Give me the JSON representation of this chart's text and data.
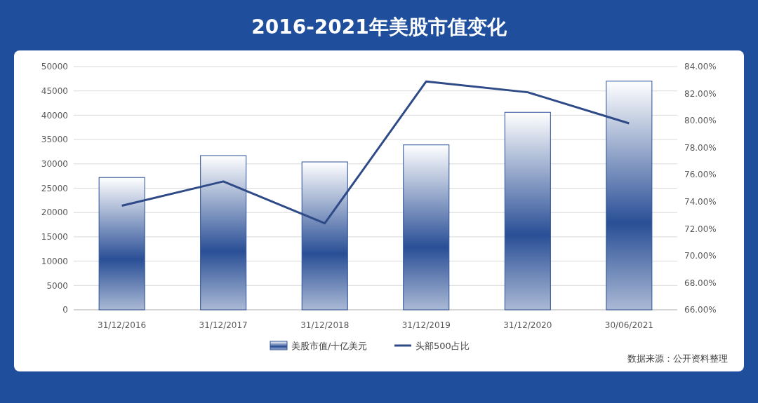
{
  "chart_data": {
    "type": "bar",
    "title": "2016-2021年美股市值变化",
    "categories": [
      "31/12/2016",
      "31/12/2017",
      "31/12/2018",
      "31/12/2019",
      "31/12/2020",
      "30/06/2021"
    ],
    "series": [
      {
        "name": "美股市值/十亿美元",
        "color": "#2a4f96",
        "values": [
          27200,
          31700,
          30400,
          33900,
          40600,
          47000
        ]
      },
      {
        "name": "头部500占比",
        "type": "line",
        "axis": "y2",
        "color": "#2e4a87",
        "values": [
          73.7,
          75.5,
          72.4,
          82.9,
          82.1,
          79.8
        ]
      }
    ],
    "ylim": [
      0,
      50000
    ],
    "yticks": [
      0,
      5000,
      10000,
      15000,
      20000,
      25000,
      30000,
      35000,
      40000,
      45000,
      50000
    ],
    "y2lim": [
      66,
      84
    ],
    "y2ticks": [
      {
        "value": 66,
        "label": "66.00%"
      },
      {
        "value": 68,
        "label": "68.00%"
      },
      {
        "value": 70,
        "label": "70.00%"
      },
      {
        "value": 72,
        "label": "72.00%"
      },
      {
        "value": 74,
        "label": "74.00%"
      },
      {
        "value": 76,
        "label": "76.00%"
      },
      {
        "value": 78,
        "label": "78.00%"
      },
      {
        "value": 80,
        "label": "80.00%"
      },
      {
        "value": 82,
        "label": "82.00%"
      },
      {
        "value": 84,
        "label": "84.00%"
      }
    ],
    "grid": "y",
    "legend": "bottom",
    "marker": "none",
    "line_style": "solid",
    "annotations": [
      "数据来源：公开资料整理"
    ]
  }
}
